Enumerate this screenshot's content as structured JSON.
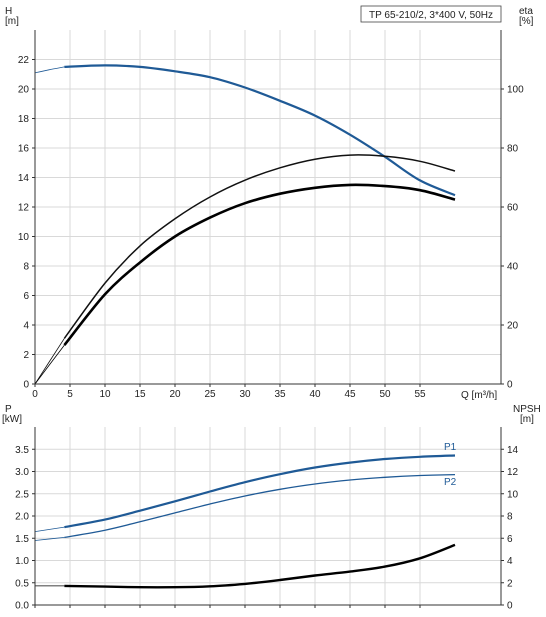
{
  "chart_data": [
    {
      "type": "line",
      "title": "TP 65-210/2, 3*400 V, 50Hz",
      "xlabel": "Q [m³/h]",
      "xlim": [
        0,
        60
      ],
      "x_ticks": [
        0,
        5,
        10,
        15,
        20,
        25,
        30,
        35,
        40,
        45,
        50,
        55
      ],
      "grid": true,
      "axes": [
        {
          "id": "left",
          "label_line1": "H",
          "label_line2": "[m]",
          "ylim": [
            0,
            24
          ],
          "ticks": [
            0,
            2,
            4,
            6,
            8,
            10,
            12,
            14,
            16,
            18,
            20,
            22
          ]
        },
        {
          "id": "right",
          "label_line1": "eta",
          "label_line2": "[%]",
          "ylim": [
            0,
            120
          ],
          "ticks": [
            0,
            20,
            40,
            60,
            80,
            100
          ]
        }
      ],
      "series": [
        {
          "axis": "left",
          "color": "#1f5a96",
          "width": 2.2,
          "x": [
            0,
            2,
            4.2,
            10,
            15,
            20,
            25,
            30,
            35,
            40,
            45,
            50,
            55,
            60
          ],
          "y": [
            21.1,
            21.3,
            21.5,
            21.6,
            21.5,
            21.2,
            20.8,
            20.1,
            19.2,
            18.2,
            16.9,
            15.4,
            13.8,
            12.8
          ],
          "thin_until": 4.2
        },
        {
          "axis": "right",
          "color": "#111111",
          "width": 1.5,
          "x": [
            0,
            4.2,
            10,
            15,
            20,
            25,
            30,
            35,
            40,
            45,
            50,
            55,
            60
          ],
          "y": [
            0,
            15.5,
            34.2,
            46.8,
            56.0,
            63.4,
            69.1,
            73.3,
            76.2,
            77.6,
            77.2,
            75.5,
            72.2
          ],
          "thin_until": 4.2
        },
        {
          "axis": "right",
          "color": "#000000",
          "width": 2.6,
          "x": [
            0,
            4.2,
            10,
            15,
            20,
            25,
            30,
            35,
            40,
            45,
            50,
            55,
            60
          ],
          "y": [
            0,
            13.2,
            30.4,
            41.2,
            50.0,
            56.4,
            61.3,
            64.5,
            66.5,
            67.5,
            67.1,
            65.7,
            62.5
          ],
          "thin_until": 4.2
        }
      ]
    },
    {
      "type": "line",
      "xlim": [
        0,
        60
      ],
      "grid": true,
      "axes": [
        {
          "id": "left",
          "label_line1": "P",
          "label_line2": "[kW]",
          "ylim": [
            0,
            4
          ],
          "ticks": [
            0.0,
            0.5,
            1.0,
            1.5,
            2.0,
            2.5,
            3.0,
            3.5
          ],
          "tick_labels": [
            "0.0",
            "0.5",
            "1.0",
            "1.5",
            "2.0",
            "2.5",
            "3.0",
            "3.5"
          ]
        },
        {
          "id": "right",
          "label_line1": "NPSH",
          "label_line2": "[m]",
          "ylim": [
            0,
            16
          ],
          "ticks": [
            0,
            2,
            4,
            6,
            8,
            10,
            12,
            14
          ]
        }
      ],
      "series": [
        {
          "name": "P1",
          "axis": "left",
          "color": "#1f5a96",
          "width": 2.2,
          "x": [
            0,
            4.2,
            10,
            15,
            20,
            25,
            30,
            35,
            40,
            45,
            50,
            55,
            60
          ],
          "y": [
            1.65,
            1.75,
            1.92,
            2.12,
            2.33,
            2.55,
            2.76,
            2.94,
            3.09,
            3.2,
            3.28,
            3.33,
            3.36
          ],
          "thin_until": 4.2
        },
        {
          "name": "P2",
          "axis": "left",
          "color": "#1f5a96",
          "width": 1.3,
          "x": [
            0,
            4.2,
            10,
            15,
            20,
            25,
            30,
            35,
            40,
            45,
            50,
            55,
            60
          ],
          "y": [
            1.45,
            1.52,
            1.68,
            1.87,
            2.07,
            2.27,
            2.45,
            2.6,
            2.72,
            2.81,
            2.87,
            2.91,
            2.93
          ],
          "thin_until": 4.2
        },
        {
          "axis": "right",
          "color": "#000000",
          "width": 2.4,
          "x": [
            0,
            4.2,
            10,
            15,
            20,
            25,
            30,
            35,
            40,
            45,
            50,
            55,
            60
          ],
          "y": [
            1.72,
            1.72,
            1.65,
            1.6,
            1.6,
            1.68,
            1.9,
            2.25,
            2.65,
            3.0,
            3.45,
            4.2,
            5.4
          ],
          "thin_until": 4.2
        }
      ]
    }
  ]
}
